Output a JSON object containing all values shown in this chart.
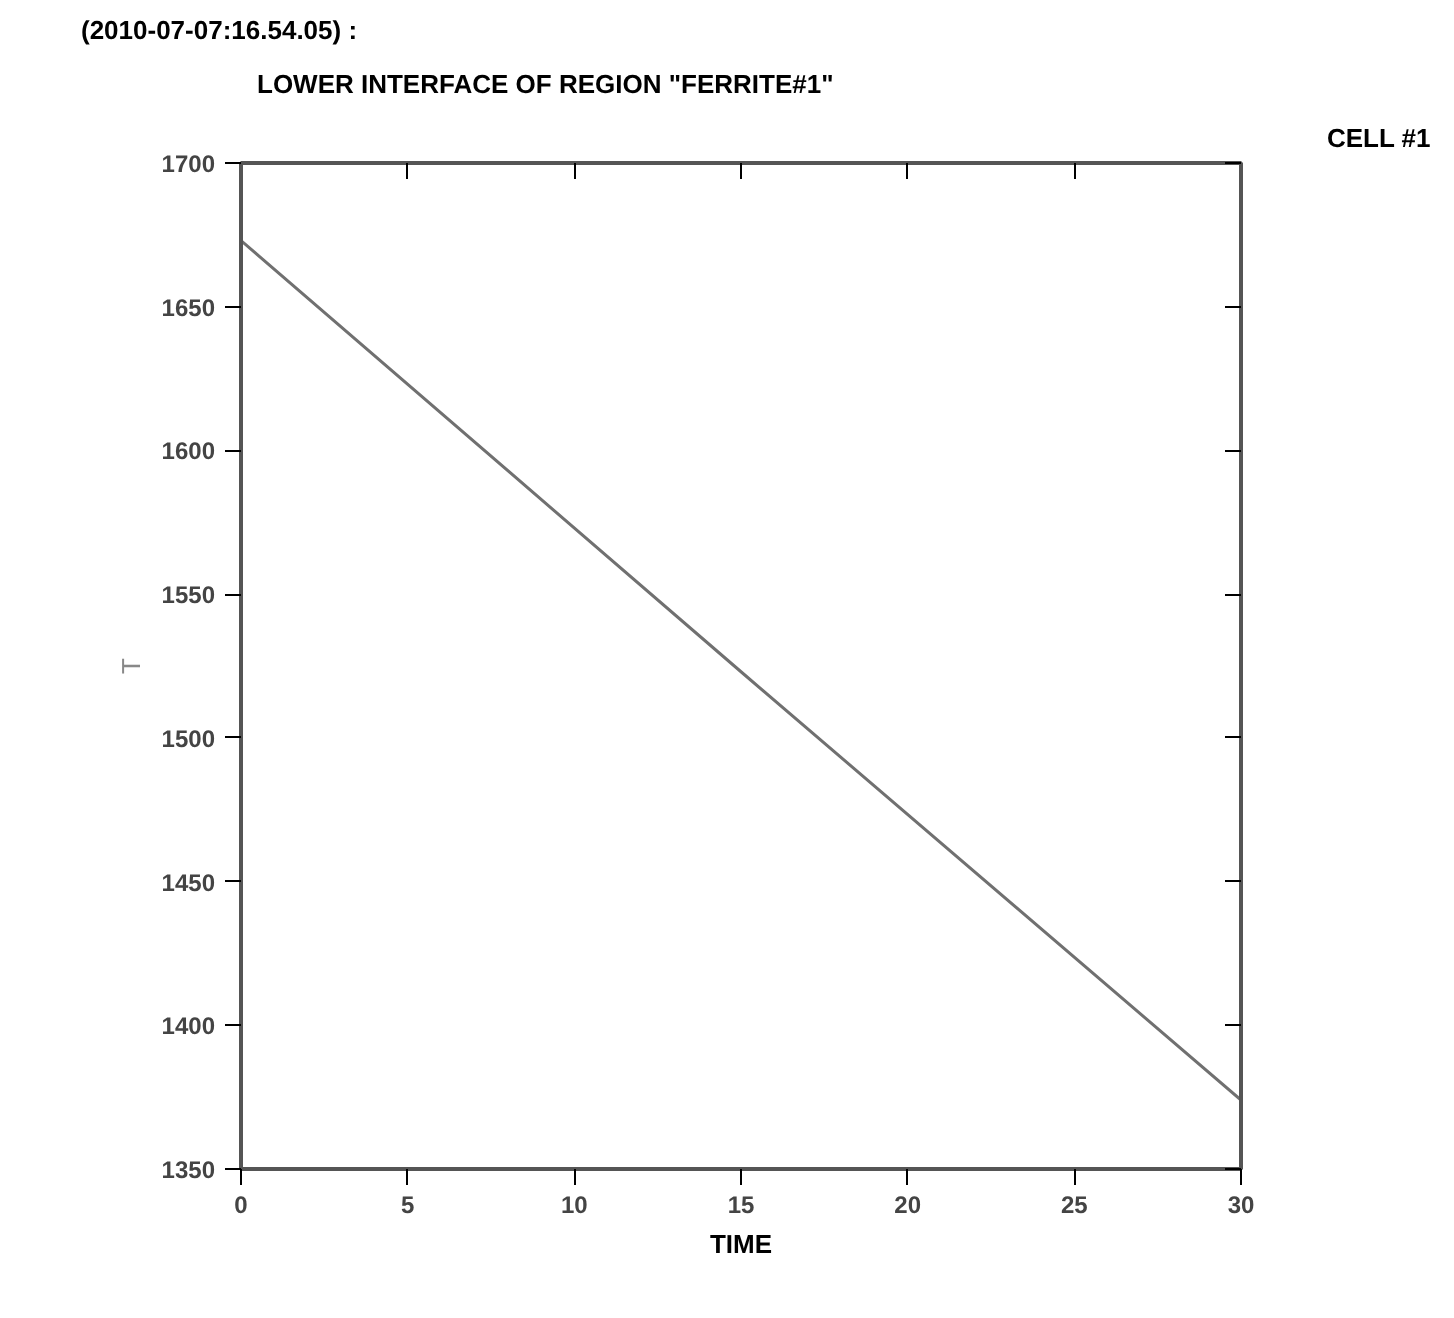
{
  "chart_data": {
    "type": "line",
    "title": "(2010-07-07:16.54.05) :",
    "subtitle": "LOWER INTERFACE OF REGION \"FERRITE#1\"",
    "xlabel": "TIME",
    "ylabel": "T",
    "annotations": [
      "CELL #1"
    ],
    "x": [
      0,
      15,
      30
    ],
    "series": [
      {
        "color": "#707070",
        "values": [
          1673,
          1523,
          1374
        ]
      }
    ],
    "xlim": [
      0,
      30
    ],
    "xticks": [
      0,
      5,
      10,
      15,
      20,
      25,
      30
    ],
    "ylim": [
      1350,
      1700
    ],
    "yticks": [
      1350,
      1400,
      1450,
      1500,
      1550,
      1600,
      1650,
      1700
    ],
    "grid": false,
    "marker": "none",
    "line_style": "solid"
  }
}
